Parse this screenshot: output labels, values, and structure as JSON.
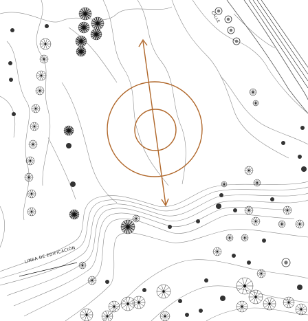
{
  "drawing": {
    "labels": {
      "building_line": "LINEA DE EDIFICACIÓN",
      "road": "CALLE"
    },
    "colors": {
      "contour": "#8a8a8a",
      "ink": "#1a1a1a",
      "survey": "#b0672a"
    },
    "icons": [
      "tree-plan-icon",
      "shrub-plan-icon",
      "survey-marker-icon",
      "arrow-icon"
    ]
  }
}
